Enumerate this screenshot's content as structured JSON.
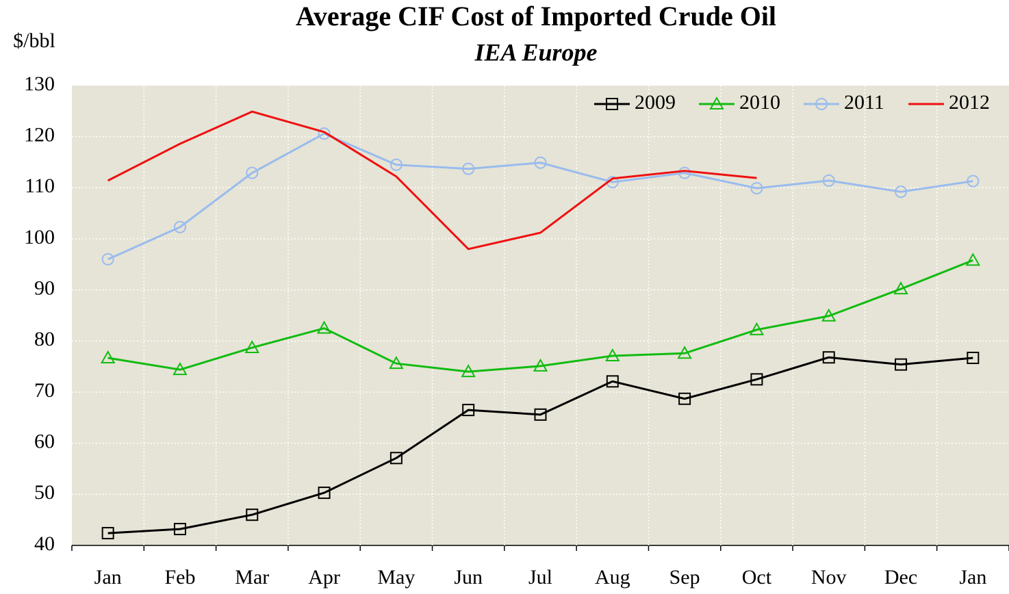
{
  "chart_data": {
    "type": "line",
    "title": "Average CIF Cost of Imported Crude Oil",
    "subtitle": "IEA Europe",
    "y_label": "$/bbl",
    "categories": [
      "Jan",
      "Feb",
      "Mar",
      "Apr",
      "May",
      "Jun",
      "Jul",
      "Aug",
      "Sep",
      "Oct",
      "Nov",
      "Dec",
      "Jan"
    ],
    "series": [
      {
        "name": "2009",
        "color": "#000000",
        "marker": "square",
        "values": [
          42.4,
          43.2,
          46.0,
          50.3,
          57.1,
          66.5,
          65.6,
          72.1,
          68.7,
          72.5,
          76.8,
          75.4,
          76.7
        ]
      },
      {
        "name": "2010",
        "color": "#11bb11",
        "marker": "triangle",
        "values": [
          76.7,
          74.4,
          78.7,
          82.5,
          75.6,
          74.0,
          75.1,
          77.1,
          77.6,
          82.2,
          84.9,
          90.2,
          95.8
        ]
      },
      {
        "name": "2011",
        "color": "#99bbee",
        "marker": "circle",
        "values": [
          96.0,
          102.3,
          112.9,
          120.6,
          114.5,
          113.7,
          114.9,
          111.1,
          112.9,
          109.9,
          111.4,
          109.2,
          111.3
        ]
      },
      {
        "name": "2012",
        "color": "#ee1111",
        "marker": "none",
        "values": [
          111.4,
          118.6,
          124.9,
          120.9,
          112.2,
          98.0,
          101.2,
          111.8,
          113.3,
          111.9,
          null,
          null,
          null
        ]
      }
    ],
    "ylim": [
      40,
      130
    ],
    "yticks": [
      40,
      50,
      60,
      70,
      80,
      90,
      100,
      110,
      120,
      130
    ],
    "grid": true,
    "legend": "top-right"
  }
}
